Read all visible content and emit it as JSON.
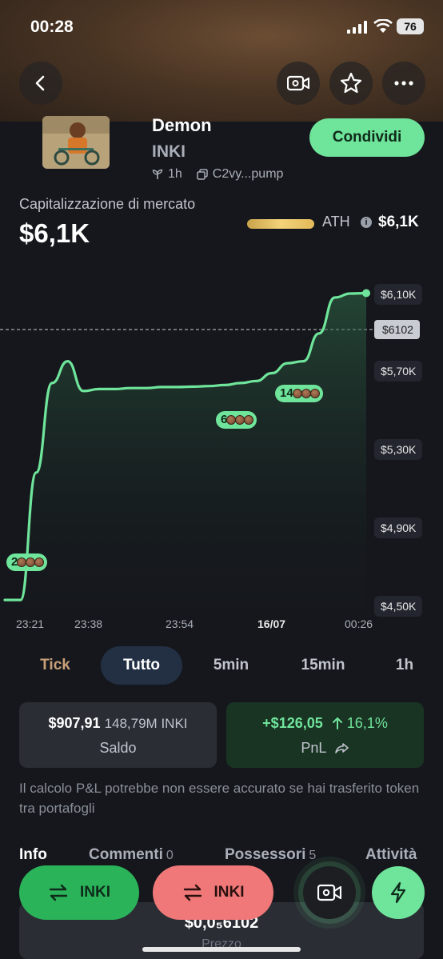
{
  "status_bar": {
    "time": "00:28",
    "battery": "76"
  },
  "token": {
    "name": "Demon",
    "symbol": "INKI",
    "age": "1h",
    "address": "C2vy...pump",
    "share_label": "Condividi"
  },
  "market": {
    "cap_label": "Capitalizzazione di mercato",
    "cap_value": "$6,1K",
    "ath_label": "ATH",
    "ath_value": "$6,1K"
  },
  "chart_data": {
    "type": "area",
    "x_labels": [
      "23:21",
      "23:38",
      "23:54",
      "16/07",
      "00:26"
    ],
    "y_labels": [
      "$6,10K",
      "$5,70K",
      "$5,30K",
      "$4,90K",
      "$4,50K"
    ],
    "ylim": [
      4500,
      6100
    ],
    "series": [
      {
        "values": [
          4560,
          4560,
          5200,
          5650,
          5760,
          5610,
          5620,
          5620,
          5625,
          5625,
          5630,
          5630,
          5632,
          5635,
          5640,
          5650,
          5660,
          5700,
          5750,
          5760,
          5900,
          6080,
          6100,
          6102
        ]
      }
    ],
    "current_price_label": "$6102",
    "trade_markers": [
      {
        "label": "2",
        "at": 1
      },
      {
        "label": "6",
        "at": 15
      },
      {
        "label": "14",
        "at": 18
      }
    ],
    "grid": false
  },
  "timeframes": [
    "Tick",
    "Tutto",
    "5min",
    "15min",
    "1h"
  ],
  "active_timeframe": "Tutto",
  "balance": {
    "value": "$907,91",
    "amount": "148,79M INKI",
    "label": "Saldo"
  },
  "pnl": {
    "value": "+$126,05",
    "percent": "16,1%",
    "label": "PnL",
    "color": "#6fe49b"
  },
  "note": "Il calcolo P&L potrebbe non essere accurato se hai trasferito token tra portafogli",
  "sub_tabs": [
    {
      "label": "Info",
      "count": ""
    },
    {
      "label": "Commenti",
      "count": "0"
    },
    {
      "label": "Possessori",
      "count": "5"
    },
    {
      "label": "Attività",
      "count": ""
    }
  ],
  "price_card": {
    "value": "$0,0₅6102",
    "label": "Prezzo"
  },
  "actions": {
    "buy_label": "INKI",
    "sell_label": "INKI"
  },
  "colors": {
    "accent_green": "#6fe49b",
    "sell_red": "#f07878",
    "buy_green": "#2bb35a"
  }
}
